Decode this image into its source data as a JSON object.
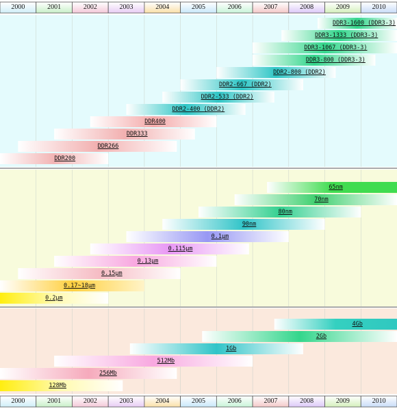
{
  "chart_data": {
    "type": "timeline",
    "years": [
      "2000",
      "2001",
      "2002",
      "2003",
      "2004",
      "2005",
      "2006",
      "2007",
      "2008",
      "2009",
      "2010"
    ],
    "year_colors": [
      "#cfeef8",
      "#c8f0c8",
      "#f4c8d8",
      "#e8ccf4",
      "#fae0a8",
      "#c8e8fa",
      "#c8f4d8",
      "#f4c8c8",
      "#dcc8f8",
      "#d4f0bc",
      "#c8dcf8"
    ],
    "x_range": [
      2000,
      2011
    ],
    "panels": [
      {
        "name": "memory-type",
        "background": "#e4fbfd",
        "rows": [
          {
            "label": "DDR200",
            "start": 2000,
            "end": 2003,
            "label_at": 2001.8,
            "colors": [
              "#ffffff",
              "#f2b4b4",
              "#ffffff"
            ]
          },
          {
            "label": "DDR266",
            "start": 2000.5,
            "end": 2004.9,
            "label_at": 2003.0,
            "colors": [
              "#ffffff",
              "#f2b0b0",
              "#ffffff"
            ]
          },
          {
            "label": "DDR333",
            "start": 2001.5,
            "end": 2005.4,
            "label_at": 2003.8,
            "colors": [
              "#ffffff",
              "#f2b0b0",
              "#ffffff"
            ]
          },
          {
            "label": "DDR400",
            "start": 2002.5,
            "end": 2006.0,
            "label_at": 2004.3,
            "colors": [
              "#ffffff",
              "#f4aaaa",
              "#ffffff"
            ]
          },
          {
            "label": "DDR2-400 (DDR2)",
            "start": 2003.5,
            "end": 2006.8,
            "label_at": 2005.5,
            "colors": [
              "#ffffff",
              "#2fc6c6",
              "#ffffff"
            ]
          },
          {
            "label": "DDR2-533 (DDR2)",
            "start": 2004.5,
            "end": 2007.6,
            "label_at": 2006.3,
            "colors": [
              "#ffffff",
              "#2fc6c6",
              "#ffffff"
            ]
          },
          {
            "label": "DDR2-667 (DDR2)",
            "start": 2005.0,
            "end": 2008.4,
            "label_at": 2006.8,
            "colors": [
              "#ffffff",
              "#2fc6c6",
              "#ffffff"
            ]
          },
          {
            "label": "DDR2-800 (DDR2)",
            "start": 2006.0,
            "end": 2009.3,
            "label_at": 2008.3,
            "colors": [
              "#ffffff",
              "#2fc6c6",
              "#ffffff"
            ]
          },
          {
            "label": "DDR3-800 (DDR3-3)",
            "start": 2007.0,
            "end": 2010.4,
            "label_at": 2009.3,
            "colors": [
              "#ffffff",
              "#34d68c",
              "#ffffff"
            ]
          },
          {
            "label": "DDR3-1067 (DDR3-3)",
            "start": 2007.0,
            "end": 2011.0,
            "label_at": 2009.3,
            "colors": [
              "#ffffff",
              "#34d68c",
              "#ffffff"
            ]
          },
          {
            "label": "DDR3-1333 (DDR3-3)",
            "start": 2007.8,
            "end": 2011.0,
            "label_at": 2009.6,
            "colors": [
              "#ffffff",
              "#34d68c",
              "#ffffff"
            ]
          },
          {
            "label": "DDR3-1600 (DDR3-3)",
            "start": 2008.8,
            "end": 2011.0,
            "label_at": 2010.6,
            "colors": [
              "#ffffff",
              "#34d68c",
              "#ffffff"
            ]
          }
        ]
      },
      {
        "name": "process",
        "background": "#f8fbdc",
        "rows": [
          {
            "label": "0.2μm",
            "start": 2000.0,
            "end": 2003.0,
            "label_at": 2001.5,
            "colors": [
              "#ffee10",
              "#fffab0",
              "#ffffff"
            ]
          },
          {
            "label": "0.17~18μm",
            "start": 2000.0,
            "end": 2004.0,
            "label_at": 2002.2,
            "colors": [
              "#ffffff",
              "#ffd040",
              "#fff4c8"
            ]
          },
          {
            "label": "0.15μm",
            "start": 2000.5,
            "end": 2005.0,
            "label_at": 2003.1,
            "colors": [
              "#ffffff",
              "#f6bcc4",
              "#ffffff"
            ]
          },
          {
            "label": "0.13μm",
            "start": 2001.5,
            "end": 2006.0,
            "label_at": 2004.1,
            "colors": [
              "#ffffff",
              "#f8a8e0",
              "#ffffff"
            ]
          },
          {
            "label": "0.115μm",
            "start": 2002.5,
            "end": 2006.9,
            "label_at": 2005.0,
            "colors": [
              "#ffffff",
              "#e898f4",
              "#ffffff"
            ]
          },
          {
            "label": "0.1μm",
            "start": 2003.5,
            "end": 2008.0,
            "label_at": 2006.1,
            "colors": [
              "#ffffff",
              "#9898f4",
              "#ffffff"
            ]
          },
          {
            "label": "90nm",
            "start": 2004.5,
            "end": 2009.0,
            "label_at": 2006.9,
            "colors": [
              "#ffffff",
              "#30c4c8",
              "#ffffff"
            ]
          },
          {
            "label": "80nm",
            "start": 2005.5,
            "end": 2010.0,
            "label_at": 2007.9,
            "colors": [
              "#ffffff",
              "#34d090",
              "#ffffff"
            ]
          },
          {
            "label": "70nm",
            "start": 2006.5,
            "end": 2011.0,
            "label_at": 2008.9,
            "colors": [
              "#ffffff",
              "#40d070",
              "#ffffff"
            ]
          },
          {
            "label": "65nm",
            "start": 2007.4,
            "end": 2011.0,
            "label_at": 2009.3,
            "colors": [
              "#ffffff",
              "#40dc50",
              "#40dc50"
            ]
          }
        ]
      },
      {
        "name": "density",
        "background": "#fbe9dd",
        "rows": [
          {
            "label": "128Mb",
            "start": 2000.0,
            "end": 2003.4,
            "label_at": 2001.6,
            "colors": [
              "#ffee10",
              "#fffab0",
              "#ffffff"
            ]
          },
          {
            "label": "256Mb",
            "start": 2000.0,
            "end": 2004.9,
            "label_at": 2003.0,
            "colors": [
              "#ffffff",
              "#f6aabc",
              "#ffffff"
            ]
          },
          {
            "label": "512Mb",
            "start": 2001.5,
            "end": 2007.0,
            "label_at": 2004.6,
            "colors": [
              "#ffffff",
              "#f8a8e0",
              "#ffffff"
            ]
          },
          {
            "label": "1Gb",
            "start": 2003.6,
            "end": 2008.4,
            "label_at": 2006.4,
            "colors": [
              "#ffffff",
              "#30c4c8",
              "#ffffff"
            ]
          },
          {
            "label": "2Gb",
            "start": 2005.6,
            "end": 2011.0,
            "label_at": 2008.9,
            "colors": [
              "#ffffff",
              "#34d68c",
              "#ffffff"
            ]
          },
          {
            "label": "4Gb",
            "start": 2007.6,
            "end": 2011.0,
            "label_at": 2009.9,
            "colors": [
              "#ffffff",
              "#34d0c0",
              "#30c8c0"
            ]
          }
        ]
      }
    ]
  }
}
